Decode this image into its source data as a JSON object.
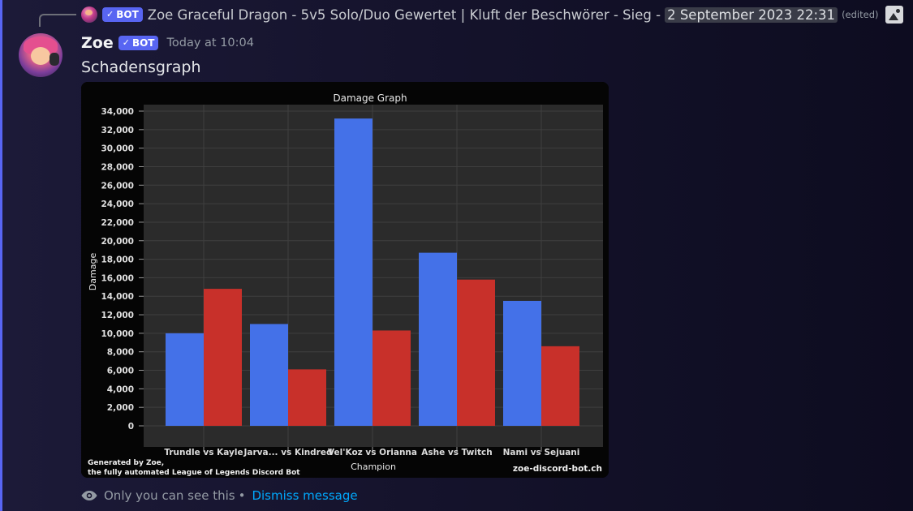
{
  "reply": {
    "bot_label": "BOT",
    "title": "Zoe Graceful Dragon - 5v5 Solo/Duo Gewertet | Kluft der Beschwörer - Sieg -",
    "date": "2 September 2023 22:31",
    "edited": "(edited)",
    "attachment_icon": "image-icon"
  },
  "message": {
    "author": "Zoe",
    "bot_label": "BOT",
    "timestamp": "Today at 10:04",
    "text": "Schadensgraph"
  },
  "ephemeral": {
    "notice": "Only you can see this",
    "separator": "•",
    "dismiss": "Dismiss message"
  },
  "colors": {
    "accent": "#5865f2",
    "link": "#00a8fc",
    "series_blue": "#4471e8",
    "series_red": "#c8302a"
  },
  "chart_data": {
    "type": "bar",
    "title": "Damage Graph",
    "xlabel": "Champion",
    "ylabel": "Damage",
    "ylim": [
      0,
      34000
    ],
    "yticks": [
      0,
      2000,
      4000,
      6000,
      8000,
      10000,
      12000,
      14000,
      16000,
      18000,
      20000,
      22000,
      24000,
      26000,
      28000,
      30000,
      32000,
      34000
    ],
    "ytick_labels": [
      "0",
      "2,000",
      "4,000",
      "6,000",
      "8,000",
      "10,000",
      "12,000",
      "14,000",
      "16,000",
      "18,000",
      "20,000",
      "22,000",
      "24,000",
      "26,000",
      "28,000",
      "30,000",
      "32,000",
      "34,000"
    ],
    "categories": [
      "Trundle vs Kayle",
      "Jarva... vs Kindred",
      "Vel'Koz vs Orianna",
      "Ashe vs Twitch",
      "Nami vs Sejuani"
    ],
    "series": [
      {
        "values": [
          10000,
          11000,
          33200,
          18700,
          13500
        ],
        "color": "#4471e8"
      },
      {
        "values": [
          14800,
          6100,
          10300,
          15800,
          8600
        ],
        "color": "#c8302a"
      }
    ],
    "grid": true,
    "footer_left_line1": "Generated by Zoe,",
    "footer_left_line2": "the fully automated League of Legends Discord Bot",
    "footer_right": "zoe-discord-bot.ch"
  }
}
